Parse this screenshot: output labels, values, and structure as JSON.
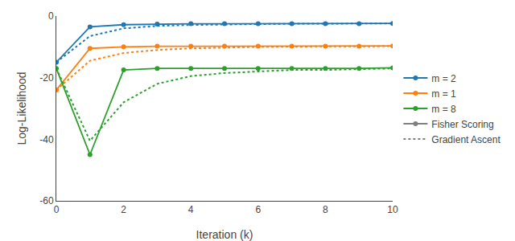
{
  "chart_data": {
    "type": "line",
    "xlabel": "Iteration (k)",
    "ylabel": "Log-Likelihood",
    "x": [
      0,
      1,
      2,
      3,
      4,
      5,
      6,
      7,
      8,
      9,
      10
    ],
    "xlim": [
      0,
      10
    ],
    "xticks": [
      0,
      2,
      4,
      6,
      8,
      10
    ],
    "ylim": [
      -60,
      0
    ],
    "yticks": [
      0,
      -20,
      -40,
      -60
    ],
    "grid": false,
    "legend": "right",
    "series": [
      {
        "name": "m = 2",
        "color": "#1f77b4",
        "line_style": "solid",
        "marker": "circle",
        "values": [
          -15.0,
          -3.5,
          -2.8,
          -2.6,
          -2.5,
          -2.5,
          -2.5,
          -2.5,
          -2.5,
          -2.5,
          -2.4
        ]
      },
      {
        "name": "m = 1",
        "color": "#ff7f0e",
        "line_style": "solid",
        "marker": "circle",
        "values": [
          -24.0,
          -10.5,
          -10.0,
          -9.8,
          -9.8,
          -9.8,
          -9.8,
          -9.8,
          -9.8,
          -9.8,
          -9.7
        ]
      },
      {
        "name": "m = 8",
        "color": "#2ca02c",
        "line_style": "solid",
        "marker": "circle",
        "values": [
          -17.0,
          -45.0,
          -17.5,
          -17.0,
          -17.0,
          -17.0,
          -17.0,
          -17.0,
          -17.0,
          -17.0,
          -16.8
        ]
      },
      {
        "color": "#1f77b4",
        "line_style": "dot",
        "values": [
          -15.0,
          -6.5,
          -4.0,
          -3.2,
          -2.9,
          -2.7,
          -2.6,
          -2.5,
          -2.5,
          -2.5,
          -2.4
        ]
      },
      {
        "color": "#ff7f0e",
        "line_style": "dot",
        "values": [
          -24.0,
          -14.5,
          -12.0,
          -11.0,
          -10.5,
          -10.2,
          -10.0,
          -9.9,
          -9.9,
          -9.8,
          -9.8
        ]
      },
      {
        "color": "#2ca02c",
        "line_style": "dot",
        "values": [
          -17.0,
          -40.5,
          -28.0,
          -22.0,
          -19.5,
          -18.5,
          -18.0,
          -17.5,
          -17.5,
          -17.2,
          -17.0
        ]
      },
      {
        "name": "Fisher Scoring",
        "color": "gray",
        "line_style": "solid",
        "marker": "circle",
        "values": [
          null,
          null,
          null,
          null,
          null,
          null,
          null,
          null,
          null,
          null,
          null
        ]
      },
      {
        "name": "Gradient Ascent",
        "color": "gray",
        "line_style": "dot",
        "values": [
          null,
          null,
          null,
          null,
          null,
          null,
          null,
          null,
          null,
          null,
          null
        ]
      }
    ]
  }
}
